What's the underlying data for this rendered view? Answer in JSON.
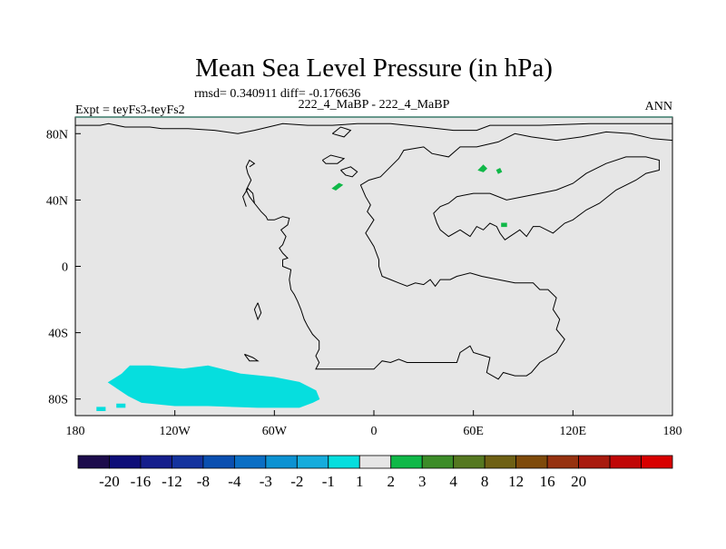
{
  "chart_data": {
    "type": "heatmap",
    "title": "Mean Sea Level Pressure (in hPa)",
    "stats_line": "rmsd= 0.340911 diff= -0.176636",
    "subtitle": "222_4_MaBP - 222_4_MaBP",
    "left_label": "Expt = teyFs3-teyFs2",
    "right_label": "ANN",
    "x_range": [
      -180,
      180
    ],
    "y_range": [
      -90,
      90
    ],
    "x_ticks": [
      {
        "value": -180,
        "label": "180"
      },
      {
        "value": -120,
        "label": "120W"
      },
      {
        "value": -60,
        "label": "60W"
      },
      {
        "value": 0,
        "label": "0"
      },
      {
        "value": 60,
        "label": "60E"
      },
      {
        "value": 120,
        "label": "120E"
      },
      {
        "value": 180,
        "label": "180"
      }
    ],
    "y_ticks": [
      {
        "value": 80,
        "label": "80N"
      },
      {
        "value": 40,
        "label": "40N"
      },
      {
        "value": 0,
        "label": "0"
      },
      {
        "value": -40,
        "label": "40S"
      },
      {
        "value": -80,
        "label": "80S"
      }
    ],
    "colorbar": {
      "colors": [
        "#1c0c4c",
        "#0e0e78",
        "#151e8c",
        "#14339e",
        "#0a4fb0",
        "#0a6ec4",
        "#0c92d2",
        "#16acdc",
        "#06dede",
        "#e6e6e6",
        "#10b848",
        "#3c8c28",
        "#557820",
        "#6e6014",
        "#7e4a0a",
        "#963210",
        "#a81a0e",
        "#c00606",
        "#d80000"
      ],
      "labels": [
        "-20",
        "-16",
        "-12",
        "-8",
        "-4",
        "-3",
        "-2",
        "-1",
        "1",
        "2",
        "3",
        "4",
        "8",
        "12",
        "16",
        "20"
      ],
      "label_start_boundary": 1
    },
    "field_background": "#e6e6e6",
    "anomaly_regions": [
      {
        "name": "southern-anomaly",
        "level": "-2 to -1",
        "color": "#06dede",
        "polygon_lonlat": [
          [
            -147,
            -60
          ],
          [
            -135,
            -60
          ],
          [
            -115,
            -62
          ],
          [
            -100,
            -60
          ],
          [
            -80,
            -65
          ],
          [
            -60,
            -67
          ],
          [
            -45,
            -70
          ],
          [
            -35,
            -75
          ],
          [
            -33,
            -80
          ],
          [
            -37,
            -82
          ],
          [
            -45,
            -85
          ],
          [
            -70,
            -85
          ],
          [
            -100,
            -84
          ],
          [
            -120,
            -84
          ],
          [
            -140,
            -82
          ],
          [
            -148,
            -78
          ],
          [
            -160,
            -70
          ],
          [
            -152,
            -65
          ]
        ]
      },
      {
        "name": "speck-atlantic",
        "level": "1 to 2",
        "color": "#10b848",
        "polygon_lonlat": [
          [
            -25,
            47
          ],
          [
            -21,
            50
          ],
          [
            -19,
            49
          ],
          [
            -23,
            46
          ]
        ]
      },
      {
        "name": "speck-siberia-1",
        "level": "1 to 2",
        "color": "#10b848",
        "polygon_lonlat": [
          [
            63,
            58
          ],
          [
            66,
            61
          ],
          [
            68,
            59
          ],
          [
            66,
            57
          ]
        ]
      },
      {
        "name": "speck-siberia-2",
        "level": "1 to 2",
        "color": "#10b848",
        "polygon_lonlat": [
          [
            74,
            58
          ],
          [
            76,
            59
          ],
          [
            77,
            57
          ],
          [
            75,
            56
          ]
        ]
      },
      {
        "name": "speck-tibet",
        "level": "1 to 2",
        "color": "#10b848",
        "polygon_lonlat": [
          [
            77,
            26
          ],
          [
            80,
            26
          ],
          [
            80,
            24
          ],
          [
            77,
            24
          ]
        ]
      },
      {
        "name": "speck-sw-1",
        "level": "-2 to -1",
        "color": "#06dede",
        "polygon_lonlat": [
          [
            -155,
            -83
          ],
          [
            -150,
            -83
          ],
          [
            -150,
            -85
          ],
          [
            -155,
            -85
          ]
        ]
      },
      {
        "name": "speck-sw-2",
        "level": "-2 to -1",
        "color": "#06dede",
        "polygon_lonlat": [
          [
            -167,
            -85
          ],
          [
            -162,
            -85
          ],
          [
            -162,
            -87
          ],
          [
            -167,
            -87
          ]
        ]
      }
    ],
    "coastlines_lonlat": [
      [
        [
          -180,
          85
        ],
        [
          -165,
          85
        ],
        [
          -160,
          86
        ],
        [
          -150,
          84
        ],
        [
          -135,
          84
        ],
        [
          -128,
          83
        ],
        [
          -112,
          83
        ],
        [
          -96,
          82
        ],
        [
          -82,
          80
        ],
        [
          -72,
          82
        ],
        [
          -55,
          86
        ],
        [
          -40,
          85
        ],
        [
          -25,
          85
        ],
        [
          -10,
          86
        ],
        [
          10,
          86
        ],
        [
          30,
          84
        ],
        [
          48,
          82
        ],
        [
          62,
          82
        ],
        [
          70,
          85
        ],
        [
          100,
          85
        ],
        [
          130,
          86
        ],
        [
          160,
          86
        ],
        [
          180,
          86
        ]
      ],
      [
        [
          -75,
          60
        ],
        [
          -72,
          62
        ],
        [
          -75,
          64
        ],
        [
          -77,
          60
        ],
        [
          -76,
          56
        ],
        [
          -74,
          52
        ],
        [
          -77,
          46
        ],
        [
          -75,
          42
        ],
        [
          -72,
          38
        ],
        [
          -68,
          33
        ],
        [
          -65,
          30
        ],
        [
          -64,
          28
        ],
        [
          -60,
          28
        ],
        [
          -55,
          30
        ],
        [
          -51,
          29
        ],
        [
          -52,
          25
        ],
        [
          -56,
          22
        ],
        [
          -53,
          18
        ],
        [
          -55,
          13
        ],
        [
          -57,
          11
        ],
        [
          -55,
          8
        ],
        [
          -52,
          5
        ],
        [
          -55,
          4
        ],
        [
          -55,
          0
        ],
        [
          -50,
          -2
        ],
        [
          -51,
          -8
        ],
        [
          -50,
          -14
        ],
        [
          -48,
          -17
        ],
        [
          -46,
          -21
        ],
        [
          -44,
          -26
        ],
        [
          -42,
          -32
        ],
        [
          -40,
          -36
        ],
        [
          -37,
          -41
        ],
        [
          -33,
          -45
        ],
        [
          -33,
          -50
        ],
        [
          -35,
          -54
        ],
        [
          -33,
          -58
        ],
        [
          -35,
          -62
        ],
        [
          -30,
          -62
        ],
        [
          -20,
          -62
        ],
        [
          -10,
          -62
        ],
        [
          0,
          -62
        ],
        [
          5,
          -57
        ],
        [
          10,
          -58
        ],
        [
          15,
          -56
        ],
        [
          20,
          -58
        ],
        [
          30,
          -58
        ],
        [
          40,
          -58
        ],
        [
          50,
          -58
        ],
        [
          52,
          -52
        ],
        [
          58,
          -48
        ],
        [
          60,
          -52
        ],
        [
          70,
          -55
        ],
        [
          68,
          -64
        ],
        [
          75,
          -68
        ],
        [
          78,
          -64
        ],
        [
          85,
          -66
        ],
        [
          92,
          -66
        ],
        [
          95,
          -64
        ],
        [
          100,
          -58
        ],
        [
          110,
          -52
        ],
        [
          115,
          -44
        ],
        [
          110,
          -38
        ],
        [
          112,
          -32
        ],
        [
          108,
          -26
        ],
        [
          110,
          -19
        ],
        [
          105,
          -14
        ],
        [
          100,
          -14
        ],
        [
          96,
          -10
        ],
        [
          85,
          -10
        ],
        [
          75,
          -8
        ],
        [
          65,
          -6
        ],
        [
          58,
          -4
        ],
        [
          50,
          -6
        ],
        [
          46,
          -8
        ],
        [
          40,
          -8
        ],
        [
          37,
          -12
        ],
        [
          34,
          -8
        ],
        [
          30,
          -11
        ],
        [
          25,
          -10
        ],
        [
          20,
          -12
        ],
        [
          15,
          -10
        ],
        [
          10,
          -8
        ],
        [
          5,
          -6
        ],
        [
          3,
          0
        ],
        [
          3,
          4
        ],
        [
          0,
          12
        ],
        [
          -5,
          20
        ],
        [
          0,
          28
        ],
        [
          -4,
          33
        ],
        [
          -2,
          37
        ],
        [
          -5,
          42
        ],
        [
          -8,
          49
        ],
        [
          -3,
          52
        ],
        [
          4,
          54
        ],
        [
          10,
          60
        ],
        [
          15,
          65
        ],
        [
          18,
          70
        ],
        [
          30,
          72
        ],
        [
          35,
          68
        ],
        [
          45,
          66
        ],
        [
          52,
          72
        ],
        [
          62,
          72
        ],
        [
          75,
          75
        ],
        [
          85,
          80
        ],
        [
          95,
          78
        ],
        [
          110,
          76
        ],
        [
          125,
          78
        ],
        [
          140,
          81
        ],
        [
          155,
          80
        ],
        [
          168,
          77
        ],
        [
          180,
          76
        ]
      ],
      [
        [
          -72,
          38
        ],
        [
          -73,
          44
        ],
        [
          -76,
          47
        ],
        [
          -79,
          42
        ],
        [
          -77,
          36
        ]
      ],
      [
        [
          -20,
          58
        ],
        [
          -14,
          60
        ],
        [
          -10,
          57
        ],
        [
          -13,
          54
        ],
        [
          -17,
          55
        ],
        [
          -20,
          58
        ]
      ],
      [
        [
          -31,
          64
        ],
        [
          -26,
          67
        ],
        [
          -18,
          65
        ],
        [
          -22,
          62
        ],
        [
          -29,
          62
        ],
        [
          -31,
          64
        ]
      ],
      [
        [
          -25,
          80
        ],
        [
          -20,
          84
        ],
        [
          -14,
          82
        ],
        [
          -18,
          78
        ],
        [
          -25,
          80
        ]
      ],
      [
        [
          40,
          22
        ],
        [
          45,
          18
        ],
        [
          52,
          22
        ],
        [
          58,
          18
        ],
        [
          62,
          24
        ],
        [
          66,
          22
        ],
        [
          70,
          26
        ],
        [
          74,
          24
        ],
        [
          76,
          20
        ],
        [
          79,
          16
        ],
        [
          82,
          18
        ],
        [
          88,
          22
        ],
        [
          92,
          18
        ],
        [
          96,
          24
        ],
        [
          100,
          24
        ],
        [
          108,
          20
        ],
        [
          115,
          26
        ],
        [
          120,
          28
        ],
        [
          128,
          34
        ],
        [
          136,
          38
        ],
        [
          146,
          46
        ],
        [
          158,
          52
        ],
        [
          164,
          56
        ],
        [
          172,
          58
        ],
        [
          172,
          64
        ],
        [
          164,
          66
        ],
        [
          152,
          66
        ],
        [
          140,
          62
        ],
        [
          128,
          56
        ],
        [
          120,
          50
        ],
        [
          110,
          46
        ],
        [
          100,
          44
        ],
        [
          90,
          42
        ],
        [
          80,
          40
        ],
        [
          70,
          44
        ],
        [
          60,
          44
        ],
        [
          50,
          42
        ],
        [
          45,
          38
        ],
        [
          40,
          36
        ],
        [
          36,
          32
        ],
        [
          38,
          26
        ],
        [
          40,
          22
        ]
      ],
      [
        [
          -70,
          -22
        ],
        [
          -68,
          -28
        ],
        [
          -70,
          -32
        ],
        [
          -72,
          -26
        ],
        [
          -70,
          -22
        ]
      ],
      [
        [
          -78,
          -53
        ],
        [
          -73,
          -55
        ],
        [
          -70,
          -57
        ],
        [
          -75,
          -57
        ],
        [
          -78,
          -53
        ]
      ]
    ]
  }
}
